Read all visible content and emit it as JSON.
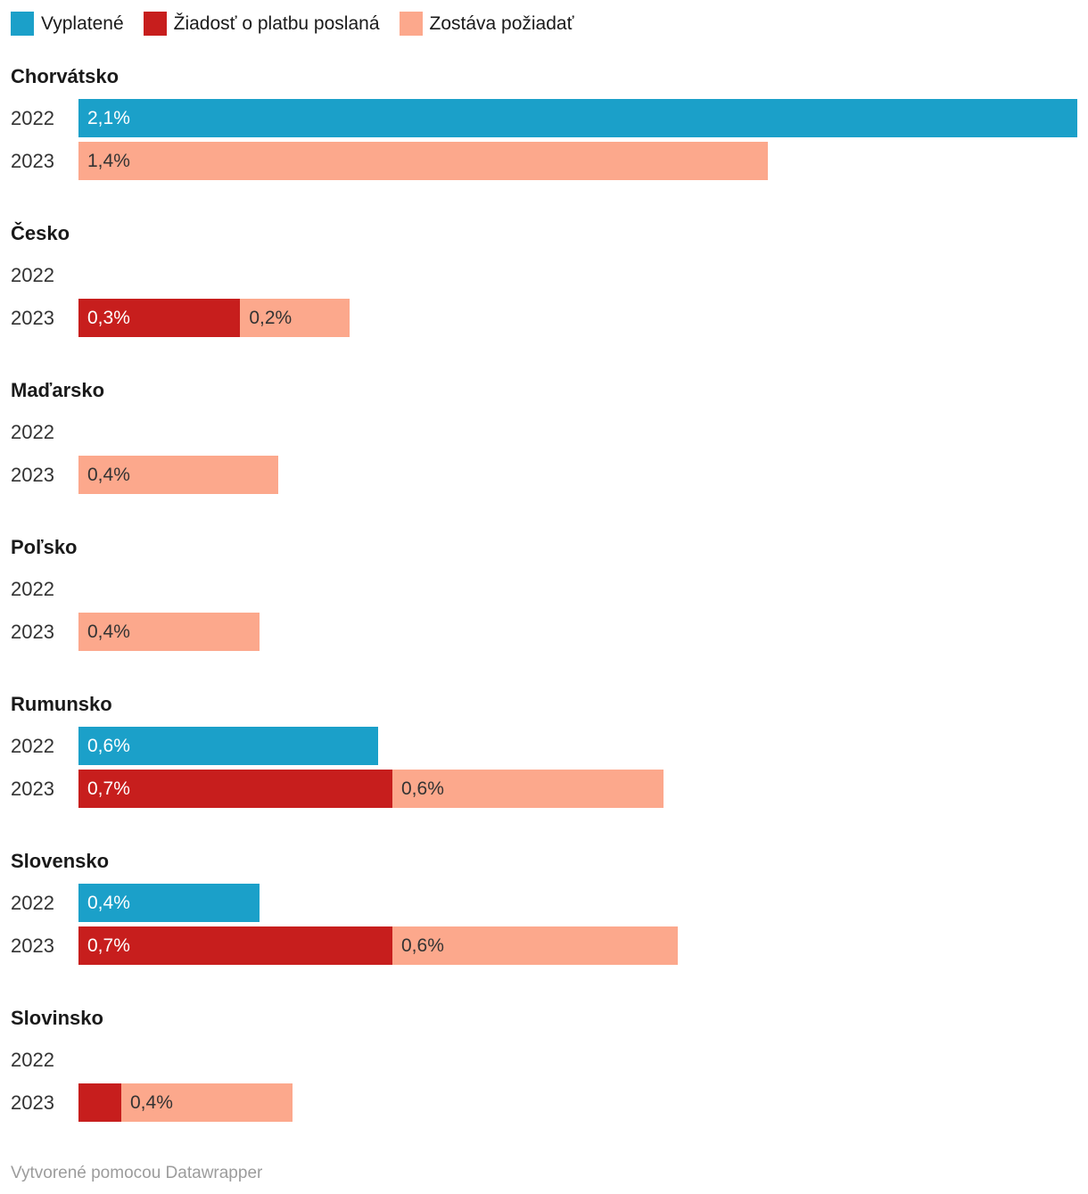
{
  "legend": {
    "items": [
      {
        "key": "paid",
        "label": "Vyplatené",
        "color": "#1BA0C9"
      },
      {
        "key": "sent",
        "label": "Žiadosť o platbu poslaná",
        "color": "#C71E1D"
      },
      {
        "key": "remaining",
        "label": "Zostáva požiadať",
        "color": "#FCA88C"
      }
    ]
  },
  "chart_data": {
    "type": "bar",
    "orientation": "horizontal",
    "stacked": true,
    "unit": "%",
    "value_axis_max": 2.1,
    "grid": false,
    "legend_position": "top",
    "series_names": {
      "paid": "Vyplatené",
      "sent": "Žiadosť o platbu poslaná",
      "remaining": "Zostáva požiadať"
    },
    "series_colors": {
      "paid": "#1BA0C9",
      "sent": "#C71E1D",
      "remaining": "#FCA88C"
    },
    "sections": [
      {
        "country": "Chorvátsko",
        "rows": [
          {
            "year": "2022",
            "segments": [
              {
                "series": "paid",
                "value": 2.1,
                "label": "2,1%"
              }
            ]
          },
          {
            "year": "2023",
            "segments": [
              {
                "series": "remaining",
                "value": 1.45,
                "label": "1,4%"
              }
            ]
          }
        ]
      },
      {
        "country": "Česko",
        "rows": [
          {
            "year": "2022",
            "segments": []
          },
          {
            "year": "2023",
            "segments": [
              {
                "series": "sent",
                "value": 0.34,
                "label": "0,3%"
              },
              {
                "series": "remaining",
                "value": 0.23,
                "label": "0,2%"
              }
            ]
          }
        ]
      },
      {
        "country": "Maďarsko",
        "rows": [
          {
            "year": "2022",
            "segments": []
          },
          {
            "year": "2023",
            "segments": [
              {
                "series": "remaining",
                "value": 0.42,
                "label": "0,4%"
              }
            ]
          }
        ]
      },
      {
        "country": "Poľsko",
        "rows": [
          {
            "year": "2022",
            "segments": []
          },
          {
            "year": "2023",
            "segments": [
              {
                "series": "remaining",
                "value": 0.38,
                "label": "0,4%"
              }
            ]
          }
        ]
      },
      {
        "country": "Rumunsko",
        "rows": [
          {
            "year": "2022",
            "segments": [
              {
                "series": "paid",
                "value": 0.63,
                "label": "0,6%"
              }
            ]
          },
          {
            "year": "2023",
            "segments": [
              {
                "series": "sent",
                "value": 0.66,
                "label": "0,7%"
              },
              {
                "series": "remaining",
                "value": 0.57,
                "label": "0,6%"
              }
            ]
          }
        ]
      },
      {
        "country": "Slovensko",
        "rows": [
          {
            "year": "2022",
            "segments": [
              {
                "series": "paid",
                "value": 0.38,
                "label": "0,4%"
              }
            ]
          },
          {
            "year": "2023",
            "segments": [
              {
                "series": "sent",
                "value": 0.66,
                "label": "0,7%"
              },
              {
                "series": "remaining",
                "value": 0.6,
                "label": "0,6%"
              }
            ]
          }
        ]
      },
      {
        "country": "Slovinsko",
        "rows": [
          {
            "year": "2022",
            "segments": []
          },
          {
            "year": "2023",
            "segments": [
              {
                "series": "sent",
                "value": 0.09,
                "label": ""
              },
              {
                "series": "remaining",
                "value": 0.36,
                "label": "0,4%"
              }
            ]
          }
        ]
      }
    ]
  },
  "footer": {
    "text": "Vytvorené pomocou Datawrapper"
  }
}
